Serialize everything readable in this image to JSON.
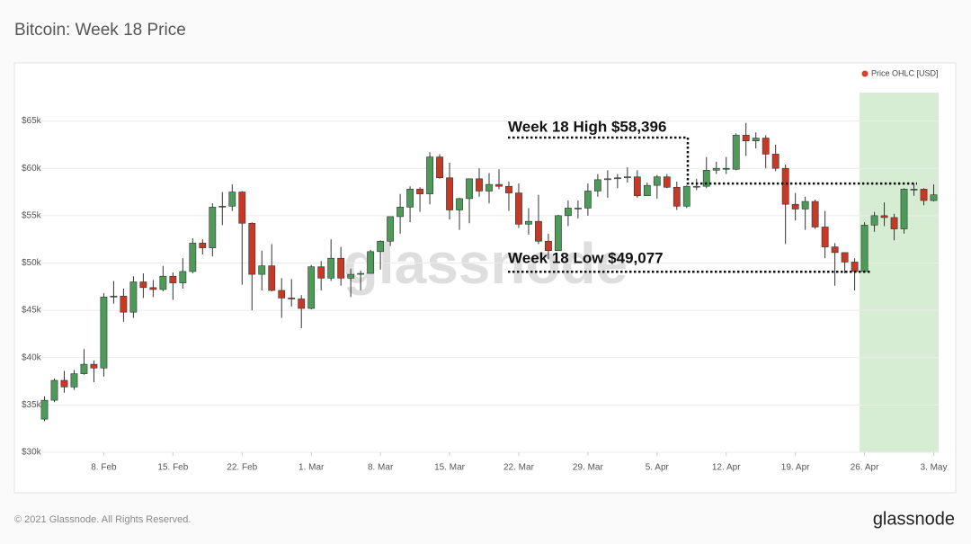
{
  "chart_data": {
    "type": "candlestick",
    "title": "Bitcoin: Week 18 Price",
    "name": "Price OHLC [USD]",
    "legend": "top-right",
    "legend_color": "#d8412f",
    "up_color": "#4d9a5a",
    "down_color": "#c53a26",
    "grid": true,
    "watermark": "glassnode",
    "highlight": {
      "from": "26. Apr",
      "color": "#d7edd3"
    },
    "annotations": [
      {
        "text": "Week 18 High $58,396",
        "value": 58396
      },
      {
        "text": "Week 18 Low $49,077",
        "value": 49077
      }
    ],
    "categories": [
      null,
      null,
      null,
      null,
      null,
      null,
      "8. Feb",
      null,
      null,
      null,
      null,
      null,
      null,
      "15. Feb",
      null,
      null,
      null,
      null,
      null,
      null,
      "22. Feb",
      null,
      null,
      null,
      null,
      null,
      null,
      "1. Mar",
      null,
      null,
      null,
      null,
      null,
      null,
      "8. Mar",
      null,
      null,
      null,
      null,
      null,
      null,
      "15. Mar",
      null,
      null,
      null,
      null,
      null,
      null,
      "22. Mar",
      null,
      null,
      null,
      null,
      null,
      null,
      "29. Mar",
      null,
      null,
      null,
      null,
      null,
      null,
      "5. Apr",
      null,
      null,
      null,
      null,
      null,
      null,
      "12. Apr",
      null,
      null,
      null,
      null,
      null,
      null,
      "19. Apr",
      null,
      null,
      null,
      null,
      null,
      null,
      "26. Apr",
      null,
      null,
      null,
      null,
      null,
      null,
      "3. May"
    ],
    "open": [
      33500,
      35500,
      37600,
      36900,
      38300,
      39300,
      38900,
      46400,
      46500,
      44800,
      48000,
      47400,
      47200,
      48600,
      47900,
      49100,
      52100,
      51600,
      55900,
      56000,
      57500,
      54200,
      48800,
      49700,
      47100,
      46300,
      46200,
      45200,
      49600,
      48400,
      50500,
      48400,
      48800,
      48900,
      51200,
      52300,
      54900,
      55900,
      57800,
      57300,
      61200,
      59000,
      55600,
      56800,
      58900,
      57600,
      58300,
      58100,
      57400,
      54100,
      54400,
      52300,
      51300,
      55000,
      55800,
      55800,
      57600,
      58800,
      58900,
      59000,
      59100,
      57100,
      58200,
      59100,
      58000,
      56000,
      58100,
      58100,
      59800,
      60000,
      59900,
      63500,
      62900,
      63200,
      61500,
      60000,
      56200,
      55700,
      56500,
      53800,
      51700,
      51100,
      50100,
      49100,
      54000,
      55000,
      54800,
      53600,
      57800,
      57800,
      56600
    ],
    "high": [
      35900,
      37800,
      38600,
      38700,
      40900,
      39700,
      46800,
      48100,
      47300,
      48600,
      48900,
      48200,
      49700,
      49000,
      50500,
      52600,
      52500,
      56300,
      57500,
      58300,
      57600,
      54300,
      51300,
      52000,
      48400,
      48300,
      46600,
      49800,
      50200,
      52500,
      51700,
      49400,
      49200,
      51400,
      52400,
      54900,
      57300,
      58100,
      58000,
      61700,
      61500,
      60600,
      56900,
      58900,
      60000,
      59500,
      59900,
      58600,
      58400,
      55800,
      57200,
      53100,
      55100,
      56600,
      56600,
      58400,
      59400,
      59800,
      59400,
      60100,
      59800,
      58500,
      59300,
      59400,
      58600,
      58200,
      58900,
      61200,
      60700,
      61200,
      63700,
      64800,
      63800,
      63500,
      62500,
      60400,
      57400,
      57000,
      56700,
      55500,
      52100,
      51100,
      50500,
      54300,
      55400,
      56400,
      55200,
      57900,
      58396,
      57900,
      58300
    ],
    "low": [
      33300,
      35300,
      36300,
      36600,
      38200,
      37400,
      38000,
      45700,
      43800,
      44200,
      46300,
      46400,
      47000,
      46100,
      47300,
      48900,
      50900,
      50700,
      54000,
      55500,
      47700,
      45000,
      47100,
      47000,
      44200,
      45400,
      43100,
      45100,
      47100,
      48100,
      47600,
      46400,
      47100,
      48900,
      49300,
      51800,
      53100,
      54300,
      55400,
      56200,
      58900,
      54600,
      53500,
      54200,
      57000,
      56300,
      57800,
      55500,
      53700,
      53000,
      52000,
      50400,
      51300,
      53900,
      54700,
      55000,
      57000,
      56900,
      57900,
      58500,
      56900,
      57100,
      56800,
      57900,
      55600,
      55800,
      57700,
      57900,
      59400,
      59400,
      59800,
      61300,
      62100,
      60000,
      59700,
      52000,
      54500,
      53500,
      53600,
      50500,
      47600,
      48900,
      47100,
      49077,
      53300,
      53900,
      52400,
      53100,
      57100,
      56100,
      56500
    ],
    "close": [
      35500,
      37600,
      36900,
      38300,
      39300,
      38900,
      46400,
      46500,
      44800,
      48000,
      47400,
      47200,
      48600,
      47900,
      49100,
      52100,
      51600,
      55900,
      56000,
      57500,
      54200,
      48800,
      49700,
      47100,
      46300,
      46200,
      45200,
      49600,
      48400,
      50500,
      48400,
      48800,
      48900,
      51200,
      52300,
      54900,
      55900,
      57800,
      57300,
      61200,
      59000,
      55600,
      56800,
      58900,
      57600,
      58300,
      58100,
      57400,
      54100,
      54400,
      52300,
      51300,
      55000,
      55800,
      55800,
      57600,
      58800,
      58900,
      59000,
      59100,
      57100,
      58200,
      59100,
      58000,
      56000,
      58100,
      58100,
      59800,
      60000,
      59900,
      63500,
      62900,
      63200,
      61500,
      60000,
      56200,
      55700,
      56500,
      53800,
      51700,
      51100,
      50100,
      49100,
      54000,
      55000,
      54800,
      53600,
      57800,
      57800,
      56600,
      57200
    ],
    "ylim": [
      30000,
      68000
    ],
    "yticks": [
      {
        "value": 30000,
        "label": "$30k"
      },
      {
        "value": 35000,
        "label": "$35k"
      },
      {
        "value": 40000,
        "label": "$40k"
      },
      {
        "value": 45000,
        "label": "$45k"
      },
      {
        "value": 50000,
        "label": "$50k"
      },
      {
        "value": 55000,
        "label": "$55k"
      },
      {
        "value": 60000,
        "label": "$60k"
      },
      {
        "value": 65000,
        "label": "$65k"
      }
    ]
  },
  "footer": {
    "copyright": "© 2021 Glassnode. All Rights Reserved.",
    "logo": "glassnode"
  }
}
